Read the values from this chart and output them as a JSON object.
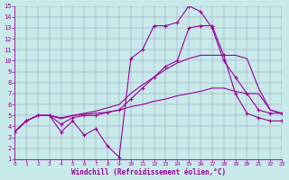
{
  "background_color": "#c8eaea",
  "line_color": "#990099",
  "xlabel": "Windchill (Refroidissement éolien,°C)",
  "xlim": [
    0,
    23
  ],
  "ylim": [
    1,
    15
  ],
  "xticks": [
    0,
    1,
    2,
    3,
    4,
    5,
    6,
    7,
    8,
    9,
    10,
    11,
    12,
    13,
    14,
    15,
    16,
    17,
    18,
    19,
    20,
    21,
    22,
    23
  ],
  "yticks": [
    1,
    2,
    3,
    4,
    5,
    6,
    7,
    8,
    9,
    10,
    11,
    12,
    13,
    14,
    15
  ],
  "line_wavy_x": [
    0,
    1,
    2,
    3,
    4,
    5,
    6,
    7,
    8,
    9,
    10,
    11,
    12,
    13,
    14,
    15,
    16,
    17,
    18,
    19,
    20,
    21,
    22,
    23
  ],
  "line_wavy_y": [
    3.5,
    4.5,
    5.0,
    5.0,
    3.5,
    4.5,
    3.2,
    3.8,
    2.2,
    1.2,
    10.2,
    11.0,
    13.2,
    13.2,
    13.5,
    15.0,
    14.5,
    13.0,
    10.0,
    8.5,
    7.0,
    5.5,
    5.2,
    5.2
  ],
  "line_curved_x": [
    0,
    1,
    2,
    3,
    4,
    5,
    6,
    7,
    8,
    9,
    10,
    11,
    12,
    13,
    14,
    15,
    16,
    17,
    18,
    19,
    20,
    21,
    22,
    23
  ],
  "line_curved_y": [
    3.5,
    4.5,
    5.0,
    5.0,
    4.2,
    4.8,
    5.0,
    5.0,
    5.3,
    5.5,
    6.5,
    7.5,
    8.5,
    9.5,
    10.0,
    13.0,
    13.2,
    13.2,
    10.5,
    7.0,
    5.2,
    4.8,
    4.5,
    4.5
  ],
  "line_diag1_x": [
    0,
    1,
    2,
    3,
    4,
    5,
    6,
    7,
    8,
    9,
    10,
    11,
    12,
    13,
    14,
    15,
    16,
    17,
    18,
    19,
    20,
    21,
    22,
    23
  ],
  "line_diag1_y": [
    3.5,
    4.5,
    5.0,
    5.0,
    4.7,
    5.0,
    5.2,
    5.4,
    5.7,
    6.0,
    7.0,
    7.8,
    8.5,
    9.2,
    9.8,
    10.2,
    10.5,
    10.5,
    10.5,
    10.5,
    10.2,
    7.5,
    5.5,
    5.2
  ],
  "line_flat_x": [
    0,
    1,
    2,
    3,
    4,
    5,
    6,
    7,
    8,
    9,
    10,
    11,
    12,
    13,
    14,
    15,
    16,
    17,
    18,
    19,
    20,
    21,
    22,
    23
  ],
  "line_flat_y": [
    3.5,
    4.5,
    5.0,
    5.0,
    4.8,
    5.0,
    5.1,
    5.2,
    5.3,
    5.5,
    5.8,
    6.0,
    6.3,
    6.5,
    6.8,
    7.0,
    7.2,
    7.5,
    7.5,
    7.2,
    7.0,
    7.0,
    5.5,
    5.2
  ]
}
